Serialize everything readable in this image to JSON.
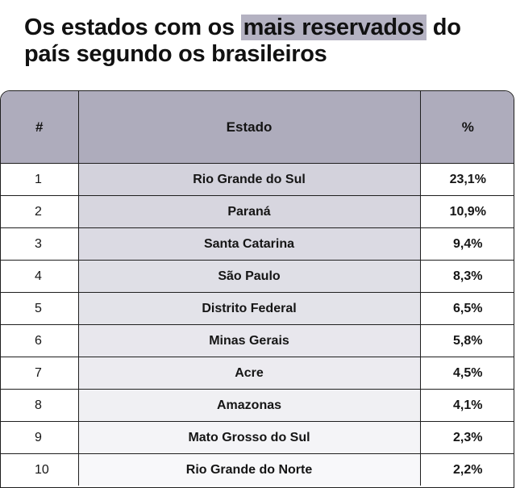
{
  "title": {
    "prefix": "Os estados com os ",
    "highlight": "mais reservados",
    "suffix": " do país segundo os brasileiros"
  },
  "colors": {
    "header_bg": "#aeacbc",
    "highlight_bg": "#b4b2c2",
    "state_gradient_top": "#d3d2dc",
    "state_gradient_bottom": "#f8f8fa"
  },
  "chart_data": {
    "type": "table",
    "title": "Os estados com os mais reservados do país segundo os brasileiros",
    "columns": [
      "#",
      "Estado",
      "%"
    ],
    "rows": [
      {
        "rank": "1",
        "state": "Rio Grande do Sul",
        "pct": "23,1%"
      },
      {
        "rank": "2",
        "state": "Paraná",
        "pct": "10,9%"
      },
      {
        "rank": "3",
        "state": "Santa Catarina",
        "pct": "9,4%"
      },
      {
        "rank": "4",
        "state": "São Paulo",
        "pct": "8,3%"
      },
      {
        "rank": "5",
        "state": "Distrito Federal",
        "pct": "6,5%"
      },
      {
        "rank": "6",
        "state": "Minas Gerais",
        "pct": "5,8%"
      },
      {
        "rank": "7",
        "state": "Acre",
        "pct": "4,5%"
      },
      {
        "rank": "8",
        "state": "Amazonas",
        "pct": "4,1%"
      },
      {
        "rank": "9",
        "state": "Mato Grosso do Sul",
        "pct": "2,3%"
      },
      {
        "rank": "10",
        "state": "Rio Grande do Norte",
        "pct": "2,2%"
      }
    ]
  }
}
